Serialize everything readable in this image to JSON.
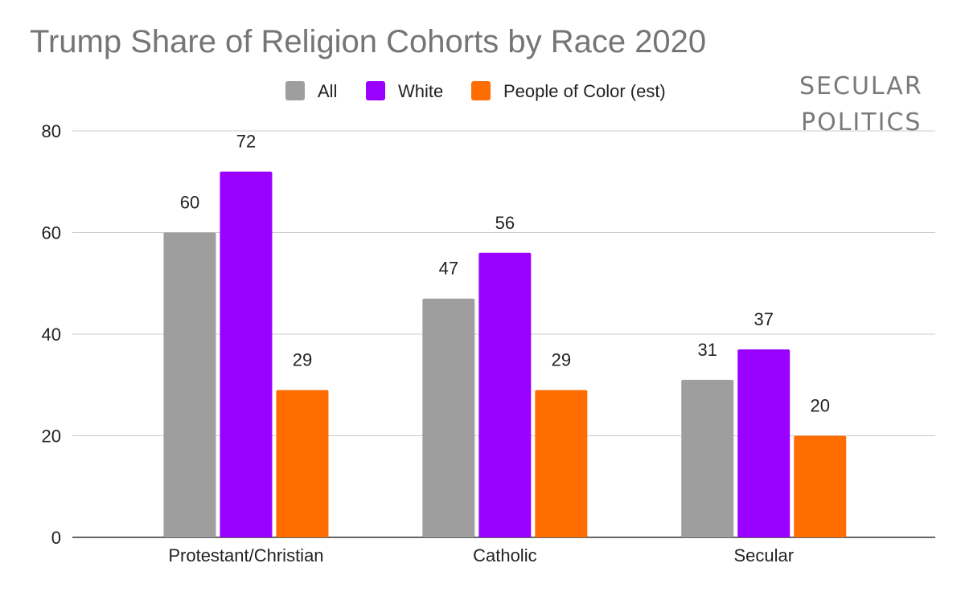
{
  "chart_data": {
    "type": "bar",
    "title": "Trump Share of Religion Cohorts by Race 2020",
    "categories": [
      "Protestant/Christian",
      "Catholic",
      "Secular"
    ],
    "series": [
      {
        "name": "All",
        "values": [
          60,
          47,
          31
        ],
        "color": "#9e9e9e"
      },
      {
        "name": "White",
        "values": [
          72,
          56,
          37
        ],
        "color": "#9900ff"
      },
      {
        "name": "People of Color (est)",
        "values": [
          29,
          29,
          20
        ],
        "color": "#ff6d01"
      }
    ],
    "ylim": [
      0,
      80
    ],
    "yticks": [
      0,
      20,
      40,
      60,
      80
    ],
    "grid": true,
    "legend_position": "top",
    "data_labels": true
  },
  "logo": {
    "line1": "SECULAR",
    "line2": "POLITICS"
  }
}
